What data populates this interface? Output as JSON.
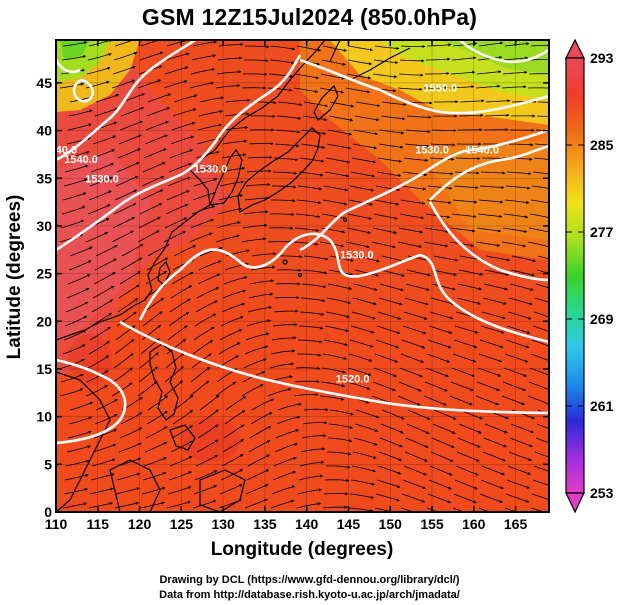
{
  "title": "GSM 12Z15Jul2024 (850.0hPa)",
  "map": {
    "x_axis_label": "Longitude (degrees)",
    "y_axis_label": "Latitude  (degrees)",
    "x_range": [
      110,
      169
    ],
    "y_range": [
      0,
      49.5
    ],
    "x_ticks": [
      110,
      115,
      120,
      125,
      130,
      135,
      140,
      145,
      150,
      155,
      160,
      165
    ],
    "y_ticks": [
      0,
      5,
      10,
      15,
      20,
      25,
      30,
      35,
      40,
      45
    ],
    "contour_labels": [
      {
        "text": "1520.0",
        "lon": 145.5,
        "lat": 14.0
      },
      {
        "text": "1530.0",
        "lon": 146.0,
        "lat": 27.0
      },
      {
        "text": "1530.0",
        "lon": 115.5,
        "lat": 35.0
      },
      {
        "text": "1530.0",
        "lon": 128.5,
        "lat": 36.0
      },
      {
        "text": "1530.0",
        "lon": 155.0,
        "lat": 38.0
      },
      {
        "text": "1540.0",
        "lon": 161.0,
        "lat": 38.0
      },
      {
        "text": "1540.0",
        "lon": 110.5,
        "lat": 38.0
      },
      {
        "text": "1540.0",
        "lon": 113.0,
        "lat": 37.0
      },
      {
        "text": "1550.0",
        "lon": 156.0,
        "lat": 44.5
      }
    ]
  },
  "colorbar": {
    "ticks": [
      253,
      261,
      269,
      277,
      285,
      293
    ],
    "colors": [
      "#e23cc4",
      "#9d2ee0",
      "#2a2ad8",
      "#1c8ce8",
      "#2ec8e8",
      "#28d890",
      "#3cd228",
      "#a8e020",
      "#f0e218",
      "#f6a81a",
      "#f06a16",
      "#ef3d2c",
      "#e84a5a"
    ]
  },
  "credits": [
    "Drawing by DCL (https://www.gfd-dennou.org/library/dcl/)",
    "Data from http://database.rish.kyoto-u.ac.jp/arch/jmadata/"
  ]
}
